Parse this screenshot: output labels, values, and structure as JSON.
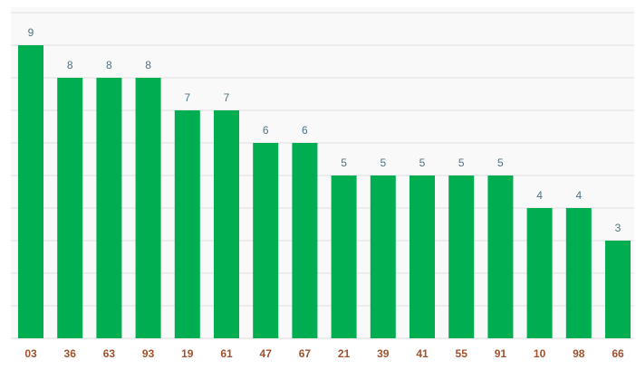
{
  "chart_data": {
    "type": "bar",
    "categories": [
      "03",
      "36",
      "63",
      "93",
      "19",
      "61",
      "47",
      "67",
      "21",
      "39",
      "41",
      "55",
      "91",
      "10",
      "98",
      "66"
    ],
    "values": [
      9,
      8,
      8,
      8,
      7,
      7,
      6,
      6,
      5,
      5,
      5,
      5,
      5,
      4,
      4,
      3
    ],
    "color": "#00ad50",
    "ylim": [
      0,
      10
    ],
    "yticks": [
      0,
      1,
      2,
      3,
      4,
      5,
      6,
      7,
      8,
      9,
      10
    ],
    "grid": true
  }
}
